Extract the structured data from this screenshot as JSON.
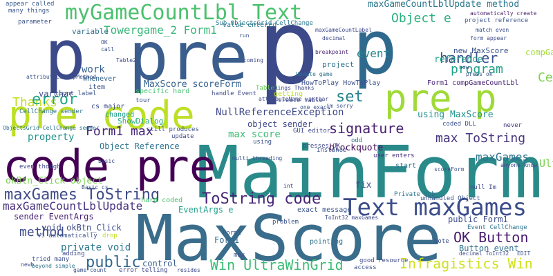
{
  "words": [
    {
      "text": "MaxScore",
      "color": "#3a6d8c"
    },
    {
      "text": "MainForm",
      "color": "#2a8a8a"
    },
    {
      "text": "p",
      "color": "#3c4a8a"
    },
    {
      "text": "pre",
      "color": "#3a5d8e"
    },
    {
      "text": "p",
      "color": "#3c4a8a"
    },
    {
      "text": "p",
      "color": "#2f6a8e"
    },
    {
      "text": "code pre",
      "color": "#440154"
    },
    {
      "text": "pre code",
      "color": "#bddf26"
    },
    {
      "text": "pre p",
      "color": "#a0da39"
    },
    {
      "text": "Text maxGames",
      "color": "#3b4d8a"
    },
    {
      "text": "myGameCountLbl Text",
      "color": "#4ac16d"
    },
    {
      "text": "maxGames ToString",
      "color": "#3e4a89"
    },
    {
      "text": "maxGameCountLblUpdate",
      "color": "#46307e"
    },
    {
      "text": "ToString code",
      "color": "#482576"
    },
    {
      "text": "Win UltraWinGrid",
      "color": "#3bbb75"
    },
    {
      "text": "Infragistics Win",
      "color": "#d0e11c"
    },
    {
      "text": "OK Button",
      "color": "#481a6c"
    },
    {
      "text": "Form1 max",
      "color": "#482878"
    },
    {
      "text": "signature",
      "color": "#482173"
    },
    {
      "text": "max ToString",
      "color": "#46337f"
    },
    {
      "text": "public",
      "color": "#31688e"
    },
    {
      "text": "Thanks",
      "color": "#c2df23"
    },
    {
      "text": "error",
      "color": "#22a884"
    },
    {
      "text": "set",
      "color": "#26828e"
    },
    {
      "text": "handler",
      "color": "#3b528b"
    },
    {
      "text": "program",
      "color": "#1fa187"
    },
    {
      "text": "Object e",
      "color": "#2ab07f"
    },
    {
      "text": "method",
      "color": "#3e4c8a"
    },
    {
      "text": "event",
      "color": "#25858e"
    },
    {
      "text": "Towergame_2 Form1",
      "color": "#35b779"
    },
    {
      "text": "maxGameCountLblUpdate method",
      "color": "#2a788e"
    },
    {
      "text": "NullReferenceException",
      "color": "#3e4989"
    },
    {
      "text": "maxGames",
      "color": "#2c728e"
    },
    {
      "text": "okBtn_Click object",
      "color": "#7ad151"
    },
    {
      "text": "CellEventArgs",
      "color": "#7ad151"
    },
    {
      "text": "UltraWinGrid",
      "color": "#7ad151"
    },
    {
      "text": "compGameCountLbl Text",
      "color": "#a5db36"
    },
    {
      "text": "work",
      "color": "#355f8d"
    },
    {
      "text": "variable",
      "color": "#2e6e8e"
    },
    {
      "text": "MaxScore scoreForm",
      "color": "#34608d"
    },
    {
      "text": "Object Reference",
      "color": "#2c738e"
    },
    {
      "text": "object sender",
      "color": "#3f4788"
    },
    {
      "text": "max score",
      "color": "#3fbc73"
    },
    {
      "text": "property",
      "color": "#21918c"
    },
    {
      "text": "blockquote",
      "color": "#450b5a"
    },
    {
      "text": "using MaxScore",
      "color": "#21918c"
    },
    {
      "text": "new MaxScore",
      "color": "#3b528b"
    },
    {
      "text": "reference",
      "color": "#21a585"
    },
    {
      "text": "Form1 compGameCountLbl",
      "color": "#482575"
    },
    {
      "text": "sender EventArgs",
      "color": "#481f70"
    },
    {
      "text": "void okBtn_Click",
      "color": "#3e4a89"
    },
    {
      "text": "private void",
      "color": "#2a778e"
    },
    {
      "text": "EventArgs e",
      "color": "#1fa088"
    },
    {
      "text": "public Form1",
      "color": "#3d4d8a"
    },
    {
      "text": "Button event",
      "color": "#2d718e"
    },
    {
      "text": "varchar",
      "color": "#3c508b"
    },
    {
      "text": "ShowDialog",
      "color": "#28ae80"
    },
    {
      "text": "control",
      "color": "#375a8c"
    },
    {
      "text": "Form1",
      "color": "#31688e"
    },
    {
      "text": "fix",
      "color": "#3e4a89"
    },
    {
      "text": "HowToPlay HowToPlay",
      "color": "#3b528b"
    },
    {
      "text": "project",
      "color": "#2c728e"
    },
    {
      "text": "Table1",
      "color": "#6ccd5a"
    },
    {
      "text": "value entered",
      "color": "#2a788e"
    },
    {
      "text": "count label",
      "color": "#3b528b"
    },
    {
      "text": "cs major",
      "color": "#3e4989"
    },
    {
      "text": "hard coded",
      "color": "#48c16e"
    },
    {
      "text": "changed",
      "color": "#1f9e89"
    },
    {
      "text": "Whenever",
      "color": "#32658e"
    },
    {
      "text": "item",
      "color": "#3b528b"
    },
    {
      "text": "getting",
      "color": "#bddf26"
    },
    {
      "text": "appear called",
      "color": "#375b8d"
    },
    {
      "text": "many things",
      "color": "#3a548c"
    },
    {
      "text": "parameter",
      "color": "#3b528b"
    },
    {
      "text": "error telling",
      "color": "#3e4989"
    },
    {
      "text": "Form1",
      "color": "#38588c"
    },
    {
      "text": "odd",
      "color": "#2c728e"
    },
    {
      "text": "project reference",
      "color": "#3b528b"
    },
    {
      "text": "automatically create",
      "color": "#481b6d"
    },
    {
      "text": "decimal",
      "color": "#3e4989"
    },
    {
      "text": "breakpoint",
      "color": "#482475"
    },
    {
      "text": "Sub ObjectsGrid CellChange",
      "color": "#2a788e"
    },
    {
      "text": "maxGameCountLabel",
      "color": "#3e4989"
    },
    {
      "text": "user enters",
      "color": "#472c7a"
    },
    {
      "text": "coded DLL",
      "color": "#3b528b"
    },
    {
      "text": "never",
      "color": "#46327e"
    },
    {
      "text": "unhandled Object",
      "color": "#3b528b"
    },
    {
      "text": "start",
      "color": "#2c728e"
    },
    {
      "text": "null Im",
      "color": "#3e4989"
    },
    {
      "text": "Note",
      "color": "#3b528b"
    },
    {
      "text": "good resource",
      "color": "#3e4989"
    },
    {
      "text": "access",
      "color": "#3b528b"
    },
    {
      "text": "Event CellChange",
      "color": "#2c728e"
    },
    {
      "text": "decimal ToInt32",
      "color": "#3e4989"
    },
    {
      "text": "EDIT",
      "color": "#3b528b"
    },
    {
      "text": "problem",
      "color": "#3b528b"
    },
    {
      "text": "pointing",
      "color": "#2c728e"
    },
    {
      "text": "exact message",
      "color": "#3b528b"
    },
    {
      "text": "ToInt32 maxGames",
      "color": "#3e4989"
    },
    {
      "text": "Basic cs",
      "color": "#3b528b"
    },
    {
      "text": "basic",
      "color": "#3e4989"
    },
    {
      "text": "presses OK",
      "color": "#3e4989"
    },
    {
      "text": "instance",
      "color": "#3b528b"
    },
    {
      "text": "using",
      "color": "#3b528b"
    },
    {
      "text": "Private Sub",
      "color": "#2c728e"
    },
    {
      "text": "GUI editor",
      "color": "#3e4989"
    },
    {
      "text": "still produces",
      "color": "#3b528b"
    },
    {
      "text": "update",
      "color": "#3e4989"
    },
    {
      "text": "specific hard",
      "color": "#46c06f"
    },
    {
      "text": "handle Event",
      "color": "#3e4989"
    },
    {
      "text": "tour",
      "color": "#3b528b"
    },
    {
      "text": "create table",
      "color": "#3e4989"
    },
    {
      "text": "one exact",
      "color": "#3b528b"
    },
    {
      "text": "things Thanks",
      "color": "#3e4989"
    },
    {
      "text": "im sorry",
      "color": "#3b528b"
    },
    {
      "text": "Update game",
      "color": "#2c728e"
    },
    {
      "text": "match even",
      "color": "#3b528b"
    },
    {
      "text": "form appear",
      "color": "#3e4989"
    },
    {
      "text": "press ok",
      "color": "#3b528b"
    },
    {
      "text": "now",
      "color": "#3e4989"
    },
    {
      "text": "coming",
      "color": "#3e4989"
    },
    {
      "text": "run",
      "color": "#3b528b"
    },
    {
      "text": "OK",
      "color": "#3e4989"
    },
    {
      "text": "call",
      "color": "#3b528b"
    },
    {
      "text": "Table2",
      "color": "#3e4989"
    },
    {
      "text": "CellChange sender",
      "color": "#2c728e"
    },
    {
      "text": "even though",
      "color": "#3e4989"
    },
    {
      "text": "ObjectsGrid CellChange sender",
      "color": "#2c728e"
    },
    {
      "text": "drop",
      "color": "#bddf26"
    },
    {
      "text": "adding",
      "color": "#3e4989"
    },
    {
      "text": "tried many",
      "color": "#3b528b"
    },
    {
      "text": "beyond simple",
      "color": "#2c728e"
    },
    {
      "text": "game count",
      "color": "#3b528b"
    },
    {
      "text": "resides",
      "color": "#3e4989"
    },
    {
      "text": "VS automatically",
      "color": "#3b528b"
    },
    {
      "text": "newb",
      "color": "#3e4989"
    },
    {
      "text": "scoreForm",
      "color": "#3b528b"
    },
    {
      "text": "anyone know",
      "color": "#3e4989"
    },
    {
      "text": "multi threading",
      "color": "#3b528b"
    },
    {
      "text": "attributeName varchar",
      "color": "#3e4989"
    },
    {
      "text": "attributeLookupMethod",
      "color": "#3b528b"
    },
    {
      "text": "int",
      "color": "#3e4989"
    },
    {
      "text": "max",
      "color": "#3b528b"
    }
  ]
}
